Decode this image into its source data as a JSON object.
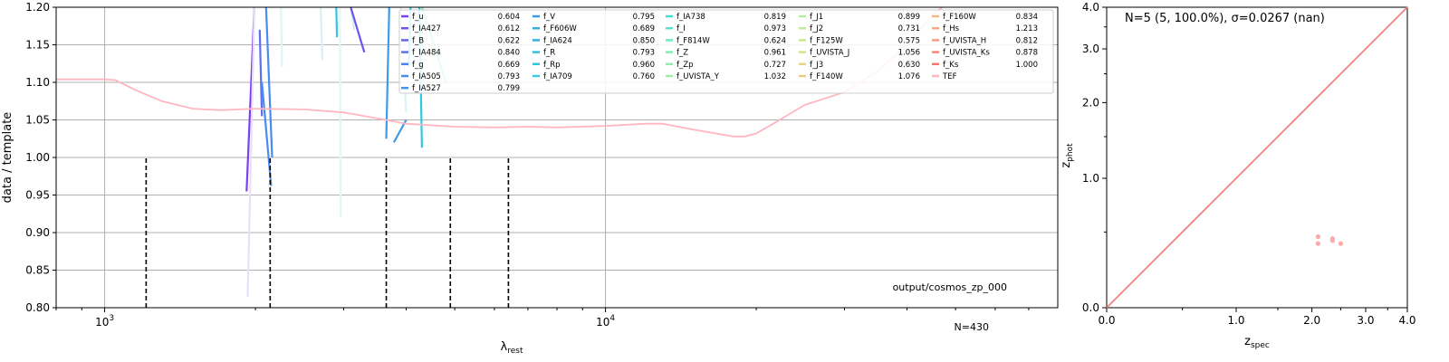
{
  "chart_data": [
    {
      "type": "line",
      "xlabel": "λ",
      "xlabel_sub": "rest",
      "ylabel": "data / template",
      "xscale": "log",
      "xlim": [
        800,
        80000
      ],
      "ylim": [
        0.8,
        1.2
      ],
      "grid": true,
      "x_ticks": [
        {
          "value": 1000,
          "base": "10",
          "exp": "3"
        },
        {
          "value": 10000,
          "base": "10",
          "exp": "4"
        }
      ],
      "y_ticks": [
        "0.80",
        "0.85",
        "0.90",
        "0.95",
        "1.00",
        "1.05",
        "1.10",
        "1.15",
        "1.20"
      ],
      "annotations": [
        "output/cosmos_zp_000",
        "N=430"
      ],
      "tef_curve": {
        "name": "TEF",
        "color": "#ffb6c1",
        "x": [
          800,
          1000,
          1050,
          1150,
          1300,
          1500,
          1700,
          2000,
          2500,
          3000,
          3500,
          4000,
          5000,
          6000,
          7000,
          8000,
          10000,
          12000,
          13000,
          15000,
          18000,
          19000,
          20000,
          22000,
          25000,
          30000,
          35000,
          40000,
          45000,
          47000
        ],
        "y": [
          1.104,
          1.104,
          1.103,
          1.09,
          1.075,
          1.065,
          1.063,
          1.065,
          1.064,
          1.06,
          1.052,
          1.045,
          1.041,
          1.04,
          1.041,
          1.04,
          1.042,
          1.045,
          1.045,
          1.037,
          1.028,
          1.028,
          1.032,
          1.048,
          1.07,
          1.087,
          1.115,
          1.15,
          1.19,
          1.2
        ]
      },
      "dashed_lines": {
        "x": [
          1210,
          2140,
          3650,
          4900,
          6400
        ],
        "ymax": 1.0,
        "color": "#000000"
      },
      "residual_segments": [
        {
          "x": [
            1920,
            1990
          ],
          "y": [
            0.955,
            1.2
          ],
          "color": "#7b3ff2"
        },
        {
          "x": [
            1930,
            1990
          ],
          "y": [
            0.815,
            1.2
          ],
          "color": "#e6e0fa"
        },
        {
          "x": [
            2040,
            2060
          ],
          "y": [
            1.17,
            1.055
          ],
          "color": "#5d6ff0"
        },
        {
          "x": [
            2060,
            2150
          ],
          "y": [
            1.1,
            0.962
          ],
          "color": "#4a8bf0"
        },
        {
          "x": [
            2100,
            2160
          ],
          "y": [
            1.2,
            1.0
          ],
          "color": "#4a8bf0"
        },
        {
          "x": [
            2250,
            2260
          ],
          "y": [
            1.2,
            1.12
          ],
          "color": "#e0f4f8"
        },
        {
          "x": [
            2700,
            2720
          ],
          "y": [
            1.2,
            1.13
          ],
          "color": "#d8f0f4"
        },
        {
          "x": [
            2900,
            2910
          ],
          "y": [
            1.2,
            1.16
          ],
          "color": "#33c6e0"
        },
        {
          "x": [
            2950,
            2960
          ],
          "y": [
            1.2,
            0.92
          ],
          "color": "#e4f5f8"
        },
        {
          "x": [
            3100,
            3150
          ],
          "y": [
            1.2,
            1.17
          ],
          "color": "#d0eef4"
        },
        {
          "x": [
            3100,
            3300
          ],
          "y": [
            1.2,
            1.14
          ],
          "color": "#6e54ea"
        },
        {
          "x": [
            3650,
            3700
          ],
          "y": [
            1.025,
            1.2
          ],
          "color": "#3d9ae8"
        },
        {
          "x": [
            3780,
            4000
          ],
          "y": [
            1.02,
            1.05
          ],
          "color": "#3d9ae8"
        },
        {
          "x": [
            4050,
            4080
          ],
          "y": [
            1.12,
            1.2
          ],
          "color": "#30c8e0"
        },
        {
          "x": [
            4250,
            4300
          ],
          "y": [
            1.2,
            1.013
          ],
          "color": "#30c8e0"
        },
        {
          "x": [
            4300,
            4800
          ],
          "y": [
            1.2,
            1.1
          ],
          "color": "#6ee8c8"
        },
        {
          "x": [
            3900,
            4000
          ],
          "y": [
            1.2,
            1.06
          ],
          "color": "#d8f4f8"
        }
      ],
      "legend": {
        "placement": "top-right",
        "columns": [
          [
            {
              "name": "f_u",
              "value": "0.604",
              "color": "#7b3ff2"
            },
            {
              "name": "f_IA427",
              "value": "0.612",
              "color": "#6e54ea"
            },
            {
              "name": "f_B",
              "value": "0.622",
              "color": "#6566ec"
            },
            {
              "name": "f_IA484",
              "value": "0.840",
              "color": "#5d6ff0"
            },
            {
              "name": "f_g",
              "value": "0.669",
              "color": "#5080f2"
            },
            {
              "name": "f_IA505",
              "value": "0.793",
              "color": "#4a8bf0"
            },
            {
              "name": "f_IA527",
              "value": "0.799",
              "color": "#4394ec"
            }
          ],
          [
            {
              "name": "f_V",
              "value": "0.795",
              "color": "#3d9ae8"
            },
            {
              "name": "f_F606W",
              "value": "0.689",
              "color": "#36a8e4"
            },
            {
              "name": "f_IA624",
              "value": "0.850",
              "color": "#30b4e2"
            },
            {
              "name": "f_R",
              "value": "0.793",
              "color": "#2fbde0"
            },
            {
              "name": "f_Rp",
              "value": "0.960",
              "color": "#30c4de"
            },
            {
              "name": "f_IA709",
              "value": "0.760",
              "color": "#36ccdc"
            }
          ],
          [
            {
              "name": "f_IA738",
              "value": "0.819",
              "color": "#4cd8d0"
            },
            {
              "name": "f_I",
              "value": "0.973",
              "color": "#5ee0c8"
            },
            {
              "name": "f_F814W",
              "value": "0.624",
              "color": "#6ee8c0"
            },
            {
              "name": "f_Z",
              "value": "0.961",
              "color": "#80ecb8"
            },
            {
              "name": "f_Zp",
              "value": "0.727",
              "color": "#92eeb0"
            },
            {
              "name": "f_UVISTA_Y",
              "value": "1.032",
              "color": "#a2f0a8"
            }
          ],
          [
            {
              "name": "f_J1",
              "value": "0.899",
              "color": "#b2f0a0"
            },
            {
              "name": "f_J2",
              "value": "0.731",
              "color": "#c0ec98"
            },
            {
              "name": "f_F125W",
              "value": "0.575",
              "color": "#cce894"
            },
            {
              "name": "f_UVISTA_J",
              "value": "1.056",
              "color": "#d8e090"
            },
            {
              "name": "f_J3",
              "value": "0.630",
              "color": "#e2d48c"
            },
            {
              "name": "f_F140W",
              "value": "1.076",
              "color": "#ecc888"
            }
          ],
          [
            {
              "name": "f_F160W",
              "value": "0.834",
              "color": "#f4b884"
            },
            {
              "name": "f_Hs",
              "value": "1.213",
              "color": "#f8a880"
            },
            {
              "name": "f_UVISTA_H",
              "value": "0.812",
              "color": "#fa9a7a"
            },
            {
              "name": "f_UVISTA_Ks",
              "value": "0.878",
              "color": "#fa8a72"
            },
            {
              "name": "f_Ks",
              "value": "1.000",
              "color": "#f8786a"
            },
            {
              "name": "TEF",
              "value": "",
              "color": "#ffb6c1"
            }
          ]
        ]
      }
    },
    {
      "type": "scatter",
      "title": "N=5 (5, 100.0%), σ=0.0267 (nan)",
      "xlabel": "z",
      "xlabel_sub": "spec",
      "ylabel": "z",
      "ylabel_sub": "phot",
      "axis_transform": "log(1+z)",
      "xlim": [
        0.0,
        4.0
      ],
      "ylim": [
        0.0,
        4.0
      ],
      "x_ticks": [
        "0.0",
        "1.0",
        "2.0",
        "3.0",
        "4.0"
      ],
      "y_ticks": [
        "0.0",
        "1.0",
        "2.0",
        "3.0",
        "4.0"
      ],
      "one_to_one_line": {
        "color": "#f08080"
      },
      "point_color": "#ffaaaa",
      "points": {
        "x": [
          2.1,
          2.1,
          2.35,
          2.35,
          2.5
        ],
        "y": [
          0.463,
          0.41,
          0.448,
          0.432,
          0.41
        ]
      }
    }
  ]
}
